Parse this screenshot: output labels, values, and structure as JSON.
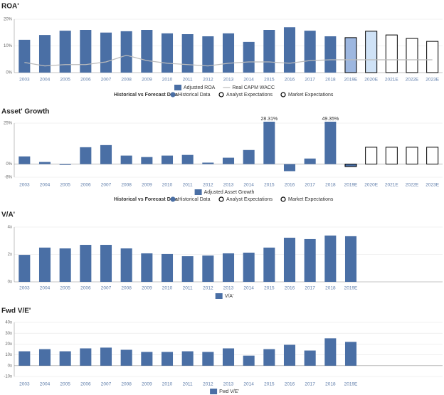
{
  "chart_data": [
    {
      "type": "bar",
      "title": "ROA'",
      "categories": [
        "2003",
        "2004",
        "2005",
        "2006",
        "2007",
        "2008",
        "2009",
        "2010",
        "2011",
        "2012",
        "2013",
        "2014",
        "2015",
        "2016",
        "2017",
        "2018",
        "2019E",
        "2020E",
        "2021E",
        "2022E",
        "2023E"
      ],
      "series": [
        {
          "name": "Adjusted ROA",
          "color": "#4a6fa5",
          "values": [
            12.3,
            14.1,
            15.7,
            16,
            15,
            15.5,
            16,
            14.7,
            14.4,
            13.6,
            14.7,
            11.5,
            16,
            17,
            15.7,
            13.6,
            13.1,
            15.5,
            14.1,
            12.8,
            11.7
          ],
          "colors": [
            "#4a6fa5",
            "#4a6fa5",
            "#4a6fa5",
            "#4a6fa5",
            "#4a6fa5",
            "#4a6fa5",
            "#4a6fa5",
            "#4a6fa5",
            "#4a6fa5",
            "#4a6fa5",
            "#4a6fa5",
            "#4a6fa5",
            "#4a6fa5",
            "#4a6fa5",
            "#4a6fa5",
            "#4a6fa5",
            "#9db7e0",
            "#cfe2f6",
            "#ffffff",
            "#ffffff",
            "#ffffff"
          ],
          "edgecolors": [
            null,
            null,
            null,
            null,
            null,
            null,
            null,
            null,
            null,
            null,
            null,
            null,
            null,
            null,
            null,
            null,
            "#000000",
            "#000000",
            "#000000",
            "#000000",
            "#000000"
          ]
        },
        {
          "name": "Real CAPM WACC",
          "type": "line",
          "color": "#bbbbbb",
          "values": [
            3.8,
            2.5,
            3,
            3,
            4,
            6.5,
            4.5,
            3.5,
            3,
            2.5,
            3.5,
            4,
            4,
            3.5,
            4.5,
            4.8,
            4.8,
            4.8,
            4.8,
            4.8,
            4.8
          ]
        }
      ],
      "ylim": [
        0,
        20
      ],
      "yticks": [
        {
          "value": 0,
          "label": "0%"
        },
        {
          "value": 10,
          "label": "10%"
        },
        {
          "value": 20,
          "label": "20%"
        }
      ],
      "grid": true,
      "forecast_legend": {
        "label": "Historical vs Forecast Data:",
        "items": [
          "Historical Data",
          "Analyst Expectations",
          "Market Expectations"
        ]
      }
    },
    {
      "type": "bar",
      "title": "Asset' Growth",
      "categories": [
        "2003",
        "2004",
        "2005",
        "2006",
        "2007",
        "2008",
        "2009",
        "2010",
        "2011",
        "2012",
        "2013",
        "2014",
        "2015",
        "2016",
        "2017",
        "2018",
        "2019E",
        "2020E",
        "2021E",
        "2022E",
        "2023E"
      ],
      "series": [
        {
          "name": "Adjusted Asset Growth",
          "color": "#4a6fa5",
          "values": [
            4.7,
            1.3,
            -0.5,
            10.3,
            11.6,
            5.2,
            4.3,
            5.2,
            5.6,
            0.9,
            3.9,
            8.6,
            28.31,
            -4.3,
            3.4,
            49.35,
            -1.5,
            10.3,
            10.3,
            10.3,
            10.3
          ],
          "value_labels": [
            null,
            null,
            null,
            null,
            null,
            null,
            null,
            null,
            null,
            null,
            null,
            null,
            "28.31%",
            null,
            null,
            "49.35%",
            null,
            null,
            null,
            null,
            null
          ],
          "colors": [
            "#4a6fa5",
            "#4a6fa5",
            "#4a6fa5",
            "#4a6fa5",
            "#4a6fa5",
            "#4a6fa5",
            "#4a6fa5",
            "#4a6fa5",
            "#4a6fa5",
            "#4a6fa5",
            "#4a6fa5",
            "#4a6fa5",
            "#4a6fa5",
            "#4a6fa5",
            "#4a6fa5",
            "#4a6fa5",
            "#4a6fa5",
            "#ffffff",
            "#ffffff",
            "#ffffff",
            "#ffffff"
          ],
          "edgecolors": [
            null,
            null,
            null,
            null,
            null,
            null,
            null,
            null,
            null,
            null,
            null,
            null,
            null,
            null,
            null,
            null,
            "#000000",
            "#000000",
            "#000000",
            "#000000",
            "#000000"
          ]
        }
      ],
      "ylim": [
        -8,
        25
      ],
      "yticks": [
        {
          "value": -8,
          "label": "-8%"
        },
        {
          "value": 0,
          "label": "0%"
        },
        {
          "value": 25,
          "label": "25%"
        }
      ],
      "grid": true,
      "forecast_legend": {
        "label": "Historical vs Forecast Data:",
        "items": [
          "Historical Data",
          "Analyst Expectations",
          "Market Expectations"
        ]
      }
    },
    {
      "type": "bar",
      "title": "V/A'",
      "categories": [
        "2003",
        "2004",
        "2005",
        "2006",
        "2007",
        "2008",
        "2009",
        "2010",
        "2011",
        "2012",
        "2013",
        "2014",
        "2015",
        "2016",
        "2017",
        "2018",
        "2019E",
        null,
        null,
        null,
        null
      ],
      "series": [
        {
          "name": "V/A'",
          "color": "#4a6fa5",
          "values": [
            1.97,
            2.5,
            2.44,
            2.7,
            2.7,
            2.44,
            2.08,
            2.03,
            1.87,
            1.92,
            2.08,
            2.13,
            2.5,
            3.22,
            3.12,
            3.38,
            3.33,
            null,
            null,
            null,
            null
          ]
        }
      ],
      "ylim": [
        0,
        4
      ],
      "yticks": [
        {
          "value": 0,
          "label": "0x"
        },
        {
          "value": 2,
          "label": "2x"
        },
        {
          "value": 4,
          "label": "4x"
        }
      ],
      "grid": true
    },
    {
      "type": "bar",
      "title": "Fwd V/E'",
      "categories": [
        "2003",
        "2004",
        "2005",
        "2006",
        "2007",
        "2008",
        "2009",
        "2010",
        "2011",
        "2012",
        "2013",
        "2014",
        "2015",
        "2016",
        "2017",
        "2018",
        "2019E",
        null,
        null,
        null,
        null
      ],
      "series": [
        {
          "name": "Fwd V/E'",
          "color": "#4a6fa5",
          "values": [
            13.3,
            15.3,
            13.3,
            16,
            16.7,
            14.7,
            12.7,
            12.7,
            13.3,
            12.7,
            16,
            9.3,
            15.3,
            19.3,
            14,
            25.3,
            22,
            null,
            null,
            null,
            null
          ]
        }
      ],
      "ylim": [
        -10,
        40
      ],
      "yticks": [
        {
          "value": -10,
          "label": "-10x"
        },
        {
          "value": 0,
          "label": "0x"
        },
        {
          "value": 10,
          "label": "10x"
        },
        {
          "value": 20,
          "label": "20x"
        },
        {
          "value": 30,
          "label": "30x"
        },
        {
          "value": 40,
          "label": "40x"
        }
      ],
      "grid": true
    }
  ]
}
